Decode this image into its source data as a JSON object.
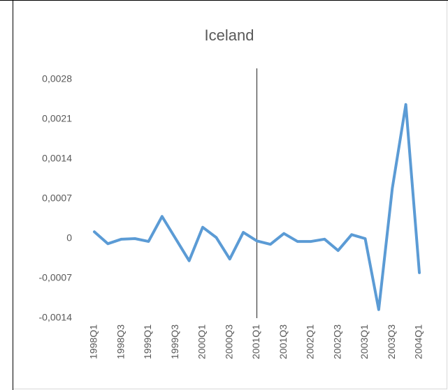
{
  "chart_data": {
    "type": "line",
    "title": "Iceland",
    "categories": [
      "1998Q1",
      null,
      "1998Q3",
      null,
      "1999Q1",
      null,
      "1999Q3",
      null,
      "2000Q1",
      null,
      "2000Q3",
      null,
      "2001Q1",
      null,
      "2001Q3",
      null,
      "2002Q1",
      null,
      "2002Q3",
      null,
      "2003Q1",
      null,
      "2003Q3",
      null,
      "2004Q1"
    ],
    "series": [
      {
        "name": "Iceland",
        "color": "#5b9bd5",
        "values": [
          0.00012,
          -9e-05,
          -1e-05,
          0,
          -5e-05,
          0.00039,
          0,
          -0.00039,
          0.0002,
          2e-05,
          -0.00036,
          0.00011,
          -4e-05,
          -0.0001,
          9e-05,
          -5e-05,
          -5e-05,
          -1e-05,
          -0.00021,
          7e-05,
          0,
          -0.00125,
          0.00088,
          0.00236,
          -0.0006
        ]
      }
    ],
    "ylim": [
      -0.0014,
      0.0028
    ],
    "yticks": [
      {
        "value": -0.0014,
        "label": "-0,0014"
      },
      {
        "value": -0.0007,
        "label": "-0,0007"
      },
      {
        "value": 0,
        "label": "0"
      },
      {
        "value": 0.0007,
        "label": "0,0007"
      },
      {
        "value": 0.0014,
        "label": "0,0014"
      },
      {
        "value": 0.0021,
        "label": "0,0021"
      },
      {
        "value": 0.0028,
        "label": "0,0028"
      }
    ],
    "vertical_line": "2001Q1"
  }
}
